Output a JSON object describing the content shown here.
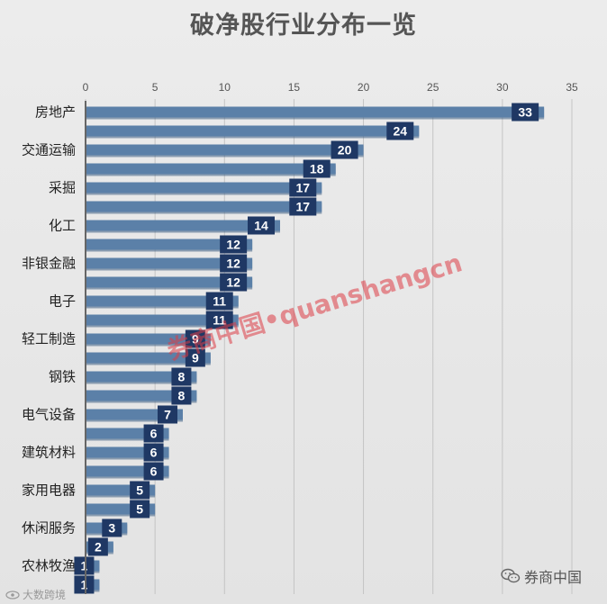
{
  "chart_data": {
    "type": "bar",
    "orientation": "horizontal",
    "title": "破净股行业分布一览",
    "xlim": [
      0,
      35
    ],
    "xticks": [
      0,
      5,
      10,
      15,
      20,
      25,
      30,
      35
    ],
    "x_axis_position": "top",
    "grid": true,
    "data_labels": true,
    "categories": [
      "房地产",
      "",
      "交通运输",
      "",
      "采掘",
      "",
      "化工",
      "",
      "非银金融",
      "",
      "电子",
      "",
      "轻工制造",
      "",
      "钢铁",
      "",
      "电气设备",
      "",
      "建筑材料",
      "",
      "家用电器",
      "",
      "休闲服务",
      "",
      "农林牧渔",
      ""
    ],
    "values": [
      33,
      24,
      20,
      18,
      17,
      17,
      14,
      12,
      12,
      12,
      11,
      11,
      9,
      9,
      8,
      8,
      7,
      6,
      6,
      6,
      5,
      5,
      3,
      2,
      1,
      1
    ],
    "bar_color": "#5b80a8",
    "label_box_color": "#1f3864"
  },
  "watermark": "券商中国•quanshangcn",
  "brand_right": "券商中国",
  "brand_left": "大数跨境",
  "icons": {
    "brand_right": "wechat-icon",
    "brand_left": "eye-icon"
  }
}
